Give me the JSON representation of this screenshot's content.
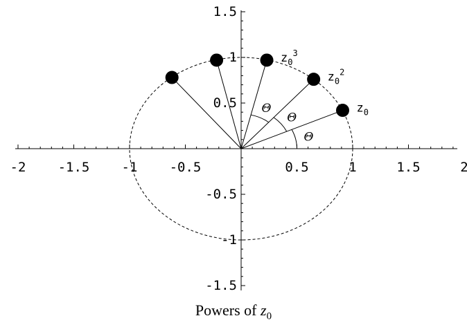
{
  "chart_data": {
    "type": "scatter",
    "caption": {
      "text": "Powers of ",
      "var": "z",
      "sub": "0"
    },
    "xlim": [
      -2,
      2
    ],
    "ylim": [
      -1.5,
      1.5
    ],
    "grid": false,
    "x_ticks": [
      "-2",
      "-1.5",
      "-1",
      "-0.5",
      "0.5",
      "1",
      "1.5",
      "2"
    ],
    "y_ticks": [
      "1.5",
      "1",
      "0.5",
      "-0.5",
      "-1",
      "-1.5"
    ],
    "x_tick_values": [
      -2,
      -1.5,
      -1,
      -0.5,
      0.5,
      1,
      1.5,
      2
    ],
    "y_tick_values": [
      1.5,
      1,
      0.5,
      -0.5,
      -1,
      -1.5
    ],
    "circle": {
      "center": [
        0,
        0
      ],
      "radius": 1,
      "style": "dashed"
    },
    "points": [
      {
        "x": 0.91,
        "y": 0.42,
        "label": "z",
        "sub": "0",
        "sup": ""
      },
      {
        "x": 0.65,
        "y": 0.76,
        "label": "z",
        "sub": "0",
        "sup": "2"
      },
      {
        "x": 0.23,
        "y": 0.97,
        "label": "z",
        "sub": "0",
        "sup": "3"
      },
      {
        "x": -0.22,
        "y": 0.97,
        "label": "",
        "sub": "",
        "sup": ""
      },
      {
        "x": -0.62,
        "y": 0.78,
        "label": "",
        "sub": "",
        "sup": ""
      }
    ],
    "angle_label": "Θ",
    "angle_marks": [
      {
        "radius": 0.5,
        "from": 0,
        "to": 1
      },
      {
        "radius": 0.45,
        "from": 1,
        "to": 2
      },
      {
        "radius": 0.38,
        "from": 2,
        "to": 3
      }
    ]
  }
}
